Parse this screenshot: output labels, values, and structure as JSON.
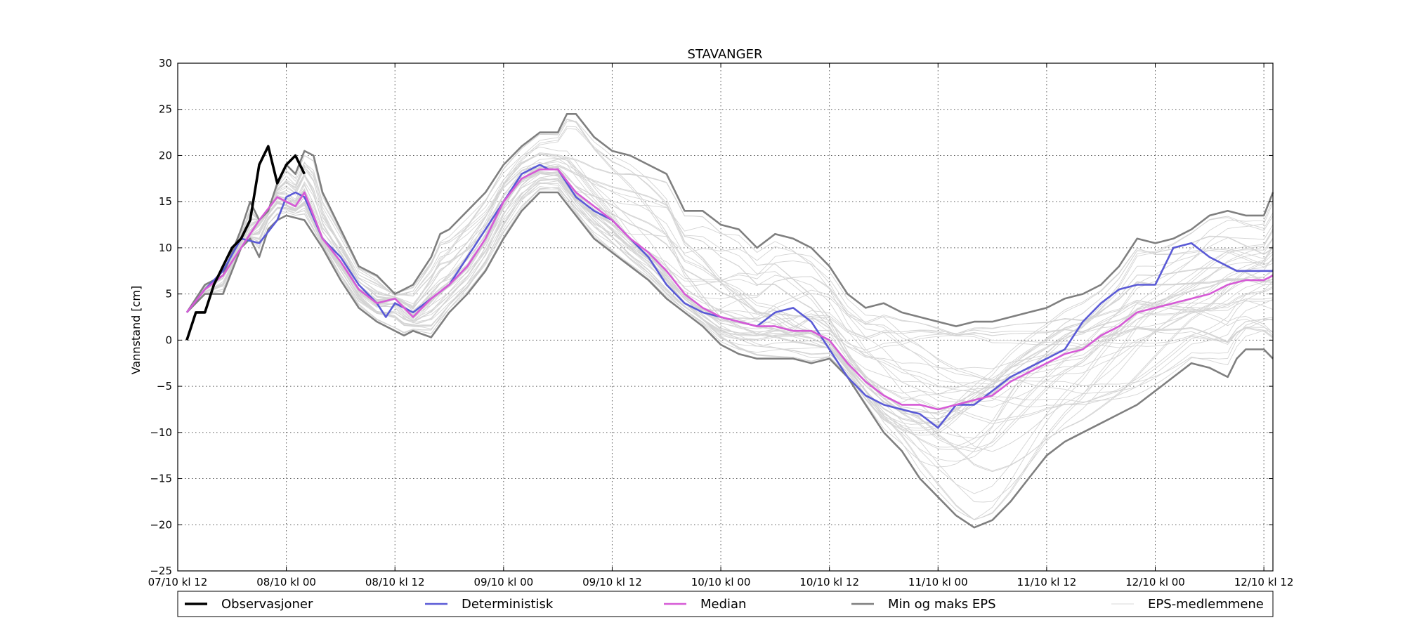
{
  "chart_data": {
    "type": "line",
    "title": "STAVANGER",
    "xlabel": "",
    "ylabel": "Vannstand [cm]",
    "xlim_hours": [
      0,
      121
    ],
    "ylim": [
      -25,
      30
    ],
    "grid": true,
    "legend_placement": "bottom",
    "x_ticks": [
      {
        "hour": 0,
        "label": "07/10 kl 12"
      },
      {
        "hour": 12,
        "label": "08/10 kl 00"
      },
      {
        "hour": 24,
        "label": "08/10 kl 12"
      },
      {
        "hour": 36,
        "label": "09/10 kl 00"
      },
      {
        "hour": 48,
        "label": "09/10 kl 12"
      },
      {
        "hour": 60,
        "label": "10/10 kl 00"
      },
      {
        "hour": 72,
        "label": "10/10 kl 12"
      },
      {
        "hour": 84,
        "label": "11/10 kl 00"
      },
      {
        "hour": 96,
        "label": "11/10 kl 12"
      },
      {
        "hour": 108,
        "label": "12/10 kl 00"
      },
      {
        "hour": 120,
        "label": "12/10 kl 12"
      }
    ],
    "y_ticks": [
      30,
      25,
      20,
      15,
      10,
      5,
      0,
      -5,
      -10,
      -15,
      -20,
      -25
    ],
    "legend": [
      {
        "label": "Observasjoner",
        "color": "#000000"
      },
      {
        "label": "Deterministisk",
        "color": "#5a5ad6"
      },
      {
        "label": "Median",
        "color": "#d65ad6"
      },
      {
        "label": "Min og maks EPS",
        "color": "#7f7f7f"
      },
      {
        "label": "EPS-medlemmene",
        "color": "#d9d9d9"
      }
    ],
    "series": [
      {
        "name": "Observasjoner",
        "color": "#000000",
        "x": [
          1,
          2,
          3,
          4,
          5,
          6,
          7,
          8,
          9,
          10,
          11,
          12,
          13,
          14
        ],
        "y": [
          0,
          3,
          3,
          6,
          8,
          10,
          11,
          13,
          19,
          21,
          17,
          19,
          20,
          18
        ]
      },
      {
        "name": "Deterministisk",
        "color": "#5a5ad6",
        "x": [
          1,
          3,
          5,
          7,
          9,
          11,
          12,
          13,
          14,
          16,
          18,
          20,
          22,
          23,
          24,
          26,
          28,
          30,
          32,
          34,
          36,
          38,
          40,
          41,
          42,
          43,
          44,
          46,
          48,
          50,
          52,
          54,
          56,
          58,
          60,
          62,
          64,
          66,
          68,
          70,
          72,
          74,
          76,
          78,
          80,
          82,
          84,
          86,
          88,
          90,
          92,
          94,
          96,
          98,
          100,
          102,
          104,
          106,
          108,
          110,
          112,
          114,
          116,
          117,
          119,
          121
        ],
        "y": [
          3,
          5.5,
          7.5,
          11,
          10.5,
          13,
          15.5,
          16,
          15.5,
          11,
          9,
          6,
          4,
          2.5,
          4,
          3,
          4.5,
          6,
          9,
          12,
          15,
          18,
          19,
          18.5,
          18.5,
          17,
          15.5,
          14,
          13,
          11,
          9,
          6,
          4,
          3,
          2.5,
          2,
          1.5,
          3,
          3.5,
          2,
          -1,
          -4,
          -6,
          -7,
          -7.5,
          -8,
          -9.5,
          -7,
          -7,
          -5.5,
          -4,
          -3,
          -2,
          -1,
          2,
          4,
          5.5,
          6,
          6,
          10,
          10.5,
          9,
          8,
          7.5,
          7.5,
          7.5
        ]
      },
      {
        "name": "Median",
        "color": "#d65ad6",
        "x": [
          1,
          3,
          5,
          7,
          9,
          11,
          12,
          13,
          14,
          16,
          18,
          20,
          22,
          24,
          26,
          28,
          30,
          32,
          34,
          36,
          38,
          40,
          42,
          44,
          46,
          48,
          50,
          52,
          54,
          56,
          58,
          60,
          62,
          64,
          66,
          68,
          70,
          72,
          74,
          76,
          78,
          80,
          82,
          84,
          86,
          88,
          90,
          92,
          94,
          96,
          98,
          100,
          102,
          104,
          106,
          108,
          110,
          112,
          114,
          116,
          118,
          120,
          121
        ],
        "y": [
          3,
          5.5,
          7,
          10,
          13,
          15.5,
          15,
          14.5,
          16,
          11,
          8.5,
          5.5,
          4,
          4.5,
          2.5,
          4.5,
          6,
          8,
          11,
          15,
          17.5,
          18.5,
          18.5,
          16,
          14.5,
          13,
          11,
          9.5,
          7.5,
          5,
          3.5,
          2.5,
          2,
          1.5,
          1.5,
          1,
          1,
          0,
          -2.5,
          -4.5,
          -6,
          -7,
          -7,
          -7.5,
          -7,
          -6.5,
          -6,
          -4.5,
          -3.5,
          -2.5,
          -1.5,
          -1,
          0.5,
          1.5,
          3,
          3.5,
          4,
          4.5,
          5,
          6,
          6.5,
          6.5,
          7
        ]
      },
      {
        "name": "Min EPS",
        "color": "#7f7f7f",
        "x": [
          1,
          3,
          5,
          7,
          8,
          9,
          10,
          11,
          12,
          14,
          16,
          18,
          20,
          22,
          24,
          25,
          26,
          28,
          30,
          32,
          34,
          36,
          38,
          40,
          42,
          44,
          46,
          48,
          50,
          52,
          54,
          56,
          58,
          60,
          62,
          64,
          66,
          68,
          70,
          72,
          74,
          76,
          78,
          80,
          82,
          84,
          86,
          88,
          90,
          92,
          94,
          96,
          98,
          100,
          102,
          104,
          106,
          108,
          110,
          112,
          114,
          116,
          117,
          118,
          120,
          121
        ],
        "y": [
          3,
          5,
          5,
          10,
          11,
          9,
          12,
          13,
          13.5,
          13,
          10,
          6.5,
          3.5,
          2,
          1,
          0.5,
          1,
          0.3,
          3,
          5,
          7.5,
          11,
          14,
          16,
          16,
          13.5,
          11,
          9.5,
          8,
          6.5,
          4.5,
          3,
          1.5,
          -0.5,
          -1.5,
          -2,
          -2,
          -2,
          -2.5,
          -2,
          -4,
          -7,
          -10,
          -12,
          -15,
          -17,
          -19,
          -20.3,
          -19.5,
          -17.5,
          -15,
          -12.5,
          -11,
          -10,
          -9,
          -8,
          -7,
          -5.5,
          -4,
          -2.5,
          -3,
          -4,
          -2,
          -1,
          -1,
          -2
        ]
      },
      {
        "name": "Maks EPS",
        "color": "#7f7f7f",
        "x": [
          1,
          3,
          5,
          7,
          8,
          9,
          10,
          11,
          12,
          13,
          14,
          15,
          16,
          18,
          20,
          22,
          24,
          26,
          28,
          29,
          30,
          32,
          34,
          36,
          38,
          40,
          42,
          43,
          44,
          46,
          48,
          50,
          52,
          54,
          56,
          58,
          60,
          62,
          64,
          66,
          68,
          70,
          72,
          74,
          76,
          78,
          80,
          82,
          84,
          86,
          88,
          90,
          92,
          94,
          96,
          98,
          100,
          102,
          104,
          106,
          108,
          110,
          112,
          114,
          116,
          118,
          120,
          121
        ],
        "y": [
          3,
          6,
          7,
          12,
          15,
          13,
          14,
          17,
          19,
          18,
          20.5,
          20,
          16,
          12,
          8,
          7,
          5,
          6,
          9,
          11.5,
          12,
          14,
          16,
          19,
          21,
          22.5,
          22.5,
          24.5,
          24.5,
          22,
          20.5,
          20,
          19,
          18,
          14,
          14,
          12.5,
          12,
          10,
          11.5,
          11,
          10,
          8,
          5,
          3.5,
          4,
          3,
          2.5,
          2,
          1.5,
          2,
          2,
          2.5,
          3,
          3.5,
          4.5,
          5,
          6,
          8,
          11,
          10.5,
          11,
          12,
          13.5,
          14,
          13.5,
          13.5,
          16
        ]
      }
    ],
    "ensemble_note": "EPS-medlemmene"
  }
}
